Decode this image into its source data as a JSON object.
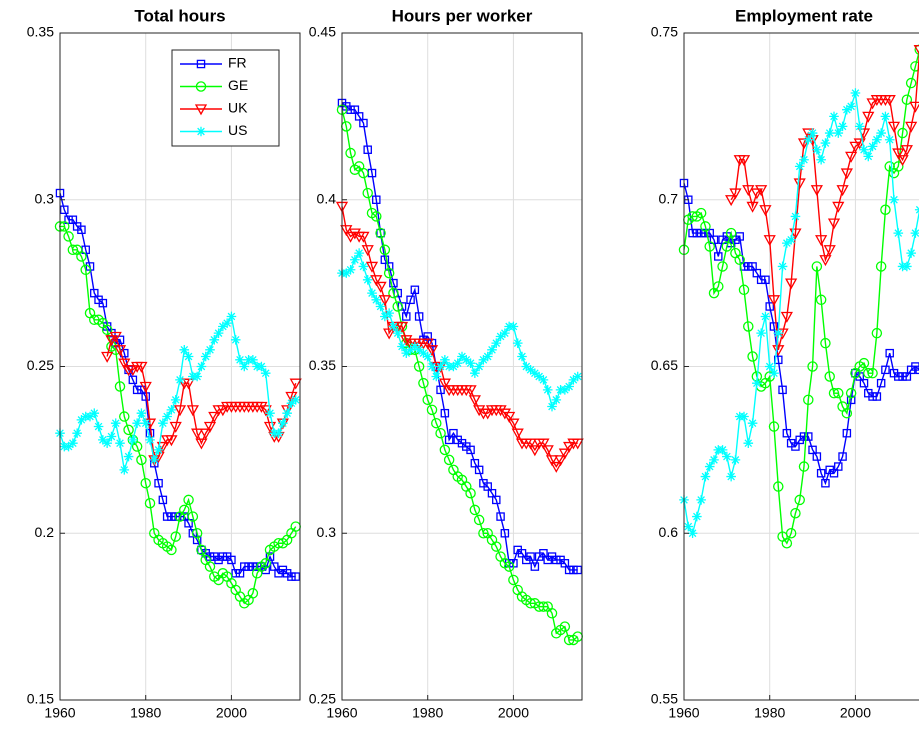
{
  "chart_data": [
    {
      "type": "line",
      "title": "Total hours",
      "legend": "northeast",
      "grid": true,
      "xlim": [
        1960,
        2016
      ],
      "ylim": [
        0.15,
        0.35
      ],
      "xticks": [
        1960,
        1980,
        2000
      ],
      "yticks": [
        0.15,
        0.2,
        0.25,
        0.3,
        0.35
      ],
      "x": [
        1960,
        1961,
        1962,
        1963,
        1964,
        1965,
        1966,
        1967,
        1968,
        1969,
        1970,
        1971,
        1972,
        1973,
        1974,
        1975,
        1976,
        1977,
        1978,
        1979,
        1980,
        1981,
        1982,
        1983,
        1984,
        1985,
        1986,
        1987,
        1988,
        1989,
        1990,
        1991,
        1992,
        1993,
        1994,
        1995,
        1996,
        1997,
        1998,
        1999,
        2000,
        2001,
        2002,
        2003,
        2004,
        2005,
        2006,
        2007,
        2008,
        2009,
        2010,
        2011,
        2012,
        2013,
        2014,
        2015
      ],
      "series": [
        {
          "name": "FR",
          "color": "#0000ff",
          "marker": "square",
          "values": [
            0.302,
            0.297,
            0.294,
            0.294,
            0.292,
            0.291,
            0.285,
            0.28,
            0.272,
            0.27,
            0.269,
            0.262,
            0.26,
            0.257,
            0.258,
            0.254,
            0.249,
            0.246,
            0.243,
            0.243,
            0.241,
            0.23,
            0.221,
            0.215,
            0.21,
            0.205,
            0.205,
            0.205,
            0.205,
            0.205,
            0.203,
            0.2,
            0.198,
            0.195,
            0.194,
            0.193,
            0.193,
            0.192,
            0.193,
            0.193,
            0.192,
            0.188,
            0.188,
            0.19,
            0.19,
            0.19,
            0.19,
            0.19,
            0.189,
            0.193,
            0.19,
            0.188,
            0.189,
            0.188,
            0.187,
            0.187
          ]
        },
        {
          "name": "GE",
          "color": "#00ff00",
          "marker": "circle",
          "values": [
            0.292,
            0.292,
            0.289,
            0.285,
            0.285,
            0.283,
            0.279,
            0.266,
            0.264,
            0.264,
            0.263,
            0.261,
            0.256,
            0.255,
            0.244,
            0.235,
            0.231,
            0.228,
            0.226,
            0.222,
            0.215,
            0.209,
            0.2,
            0.198,
            0.197,
            0.196,
            0.195,
            0.199,
            0.205,
            0.207,
            0.21,
            0.205,
            0.2,
            0.195,
            0.192,
            0.19,
            0.187,
            0.186,
            0.188,
            0.187,
            0.185,
            0.183,
            0.181,
            0.179,
            0.18,
            0.182,
            0.188,
            0.19,
            0.191,
            0.195,
            0.196,
            0.197,
            0.197,
            0.198,
            0.2,
            0.202
          ]
        },
        {
          "name": "UK",
          "color": "#ff0000",
          "marker": "triangle",
          "values": [
            null,
            null,
            null,
            null,
            null,
            null,
            null,
            null,
            null,
            null,
            null,
            0.253,
            0.258,
            0.259,
            0.255,
            0.251,
            0.249,
            0.249,
            0.25,
            0.25,
            0.244,
            0.233,
            0.222,
            0.223,
            0.226,
            0.228,
            0.228,
            0.232,
            0.237,
            0.245,
            0.245,
            0.237,
            0.23,
            0.227,
            0.23,
            0.232,
            0.235,
            0.237,
            0.237,
            0.238,
            0.238,
            0.238,
            0.238,
            0.238,
            0.238,
            0.238,
            0.238,
            0.238,
            0.237,
            0.232,
            0.229,
            0.229,
            0.233,
            0.237,
            0.241,
            0.245
          ]
        },
        {
          "name": "US",
          "color": "#00ffff",
          "marker": "asterisk",
          "values": [
            0.23,
            0.226,
            0.226,
            0.227,
            0.23,
            0.234,
            0.235,
            0.235,
            0.236,
            0.232,
            0.228,
            0.227,
            0.229,
            0.233,
            0.227,
            0.219,
            0.223,
            0.228,
            0.233,
            0.236,
            0.233,
            0.228,
            0.222,
            0.225,
            0.233,
            0.235,
            0.237,
            0.24,
            0.246,
            0.255,
            0.253,
            0.247,
            0.247,
            0.25,
            0.253,
            0.255,
            0.258,
            0.26,
            0.262,
            0.263,
            0.265,
            0.258,
            0.252,
            0.25,
            0.252,
            0.252,
            0.25,
            0.25,
            0.248,
            0.236,
            0.23,
            0.23,
            0.233,
            0.236,
            0.239,
            0.24
          ]
        }
      ]
    },
    {
      "type": "line",
      "title": "Hours per worker",
      "grid": true,
      "xlim": [
        1960,
        2016
      ],
      "ylim": [
        0.25,
        0.45
      ],
      "xticks": [
        1960,
        1980,
        2000
      ],
      "yticks": [
        0.25,
        0.3,
        0.35,
        0.4,
        0.45
      ],
      "x": [
        1960,
        1961,
        1962,
        1963,
        1964,
        1965,
        1966,
        1967,
        1968,
        1969,
        1970,
        1971,
        1972,
        1973,
        1974,
        1975,
        1976,
        1977,
        1978,
        1979,
        1980,
        1981,
        1982,
        1983,
        1984,
        1985,
        1986,
        1987,
        1988,
        1989,
        1990,
        1991,
        1992,
        1993,
        1994,
        1995,
        1996,
        1997,
        1998,
        1999,
        2000,
        2001,
        2002,
        2003,
        2004,
        2005,
        2006,
        2007,
        2008,
        2009,
        2010,
        2011,
        2012,
        2013,
        2014,
        2015
      ],
      "series": [
        {
          "color": "#0000ff",
          "marker": "square",
          "values": [
            0.429,
            0.428,
            0.427,
            0.427,
            0.425,
            0.423,
            0.415,
            0.408,
            0.4,
            0.39,
            0.382,
            0.38,
            0.375,
            0.372,
            0.368,
            0.365,
            0.37,
            0.373,
            0.365,
            0.358,
            0.359,
            0.357,
            0.35,
            0.343,
            0.336,
            0.328,
            0.33,
            0.328,
            0.327,
            0.326,
            0.325,
            0.321,
            0.319,
            0.315,
            0.314,
            0.312,
            0.31,
            0.305,
            0.3,
            0.291,
            0.291,
            0.295,
            0.294,
            0.292,
            0.293,
            0.29,
            0.293,
            0.294,
            0.292,
            0.293,
            0.292,
            0.292,
            0.291,
            0.289,
            0.289,
            0.289
          ]
        },
        {
          "color": "#00ff00",
          "marker": "circle",
          "values": [
            0.427,
            0.422,
            0.414,
            0.409,
            0.41,
            0.408,
            0.402,
            0.396,
            0.395,
            0.39,
            0.385,
            0.378,
            0.372,
            0.368,
            0.362,
            0.357,
            0.355,
            0.355,
            0.35,
            0.345,
            0.34,
            0.337,
            0.333,
            0.33,
            0.325,
            0.322,
            0.319,
            0.317,
            0.316,
            0.314,
            0.312,
            0.307,
            0.304,
            0.3,
            0.3,
            0.298,
            0.296,
            0.293,
            0.291,
            0.29,
            0.286,
            0.283,
            0.281,
            0.28,
            0.279,
            0.279,
            0.278,
            0.278,
            0.278,
            0.276,
            0.27,
            0.271,
            0.272,
            0.268,
            0.268,
            0.269
          ]
        },
        {
          "color": "#ff0000",
          "marker": "triangle",
          "values": [
            0.398,
            0.391,
            0.389,
            0.39,
            0.389,
            0.389,
            0.385,
            0.38,
            0.376,
            0.374,
            0.37,
            0.36,
            0.362,
            0.362,
            0.362,
            0.358,
            0.357,
            0.357,
            0.357,
            0.357,
            0.357,
            0.355,
            0.35,
            0.35,
            0.345,
            0.343,
            0.343,
            0.343,
            0.343,
            0.343,
            0.343,
            0.34,
            0.337,
            0.336,
            0.336,
            0.337,
            0.337,
            0.337,
            0.336,
            0.335,
            0.333,
            0.33,
            0.327,
            0.327,
            0.327,
            0.325,
            0.327,
            0.327,
            0.325,
            0.322,
            0.32,
            0.322,
            0.324,
            0.326,
            0.327,
            0.327
          ]
        },
        {
          "color": "#00ffff",
          "marker": "asterisk",
          "values": [
            0.378,
            0.378,
            0.379,
            0.382,
            0.384,
            0.38,
            0.376,
            0.372,
            0.37,
            0.368,
            0.365,
            0.366,
            0.362,
            0.36,
            0.356,
            0.354,
            0.355,
            0.356,
            0.355,
            0.354,
            0.353,
            0.35,
            0.347,
            0.35,
            0.352,
            0.35,
            0.35,
            0.351,
            0.353,
            0.352,
            0.351,
            0.348,
            0.35,
            0.352,
            0.353,
            0.355,
            0.357,
            0.359,
            0.36,
            0.362,
            0.362,
            0.357,
            0.353,
            0.35,
            0.349,
            0.348,
            0.347,
            0.346,
            0.343,
            0.338,
            0.34,
            0.343,
            0.343,
            0.344,
            0.346,
            0.347
          ]
        }
      ]
    },
    {
      "type": "line",
      "title": "Employment rate",
      "grid": true,
      "xlim": [
        1960,
        2016
      ],
      "ylim": [
        0.55,
        0.75
      ],
      "xticks": [
        1960,
        1980,
        2000
      ],
      "yticks": [
        0.55,
        0.6,
        0.65,
        0.7,
        0.75
      ],
      "x": [
        1960,
        1961,
        1962,
        1963,
        1964,
        1965,
        1966,
        1967,
        1968,
        1969,
        1970,
        1971,
        1972,
        1973,
        1974,
        1975,
        1976,
        1977,
        1978,
        1979,
        1980,
        1981,
        1982,
        1983,
        1984,
        1985,
        1986,
        1987,
        1988,
        1989,
        1990,
        1991,
        1992,
        1993,
        1994,
        1995,
        1996,
        1997,
        1998,
        1999,
        2000,
        2001,
        2002,
        2003,
        2004,
        2005,
        2006,
        2007,
        2008,
        2009,
        2010,
        2011,
        2012,
        2013,
        2014,
        2015
      ],
      "series": [
        {
          "color": "#0000ff",
          "marker": "square",
          "values": [
            0.705,
            0.7,
            0.69,
            0.69,
            0.69,
            0.69,
            0.69,
            0.688,
            0.683,
            0.688,
            0.689,
            0.687,
            0.688,
            0.689,
            0.68,
            0.68,
            0.68,
            0.678,
            0.676,
            0.676,
            0.668,
            0.662,
            0.652,
            0.643,
            0.63,
            0.627,
            0.626,
            0.628,
            0.629,
            0.629,
            0.625,
            0.623,
            0.618,
            0.615,
            0.619,
            0.618,
            0.62,
            0.623,
            0.63,
            0.64,
            0.648,
            0.647,
            0.645,
            0.642,
            0.641,
            0.641,
            0.645,
            0.649,
            0.654,
            0.648,
            0.647,
            0.647,
            0.647,
            0.649,
            0.65,
            0.649
          ]
        },
        {
          "color": "#00ff00",
          "marker": "circle",
          "values": [
            0.685,
            0.694,
            0.695,
            0.695,
            0.696,
            0.692,
            0.686,
            0.672,
            0.674,
            0.68,
            0.686,
            0.69,
            0.684,
            0.682,
            0.673,
            0.662,
            0.653,
            0.647,
            0.644,
            0.645,
            0.647,
            0.632,
            0.614,
            0.599,
            0.597,
            0.6,
            0.606,
            0.61,
            0.62,
            0.64,
            0.65,
            0.68,
            0.67,
            0.657,
            0.647,
            0.642,
            0.642,
            0.638,
            0.636,
            0.642,
            0.648,
            0.65,
            0.651,
            0.648,
            0.648,
            0.66,
            0.68,
            0.697,
            0.71,
            0.708,
            0.71,
            0.72,
            0.73,
            0.735,
            0.74,
            0.745
          ]
        },
        {
          "color": "#ff0000",
          "marker": "triangle",
          "values": [
            null,
            null,
            null,
            null,
            null,
            null,
            null,
            null,
            null,
            null,
            null,
            0.7,
            0.702,
            0.712,
            0.712,
            0.703,
            0.698,
            0.702,
            0.703,
            0.697,
            0.688,
            0.67,
            0.655,
            0.66,
            0.665,
            0.675,
            0.69,
            0.705,
            0.717,
            0.72,
            0.718,
            0.703,
            0.688,
            0.682,
            0.685,
            0.693,
            0.698,
            0.703,
            0.708,
            0.713,
            0.716,
            0.717,
            0.72,
            0.725,
            0.729,
            0.73,
            0.73,
            0.73,
            0.73,
            0.722,
            0.714,
            0.712,
            0.715,
            0.722,
            0.728,
            0.745
          ]
        },
        {
          "color": "#00ffff",
          "marker": "asterisk",
          "values": [
            0.61,
            0.602,
            0.6,
            0.605,
            0.61,
            0.617,
            0.62,
            0.622,
            0.625,
            0.625,
            0.623,
            0.617,
            0.622,
            0.635,
            0.635,
            0.627,
            0.633,
            0.645,
            0.66,
            0.665,
            0.65,
            0.648,
            0.66,
            0.68,
            0.687,
            0.688,
            0.695,
            0.71,
            0.712,
            0.718,
            0.72,
            0.715,
            0.712,
            0.717,
            0.72,
            0.725,
            0.72,
            0.722,
            0.727,
            0.728,
            0.732,
            0.722,
            0.715,
            0.713,
            0.716,
            0.718,
            0.72,
            0.725,
            0.718,
            0.7,
            0.69,
            0.68,
            0.68,
            0.684,
            0.69,
            0.697
          ]
        }
      ]
    }
  ]
}
